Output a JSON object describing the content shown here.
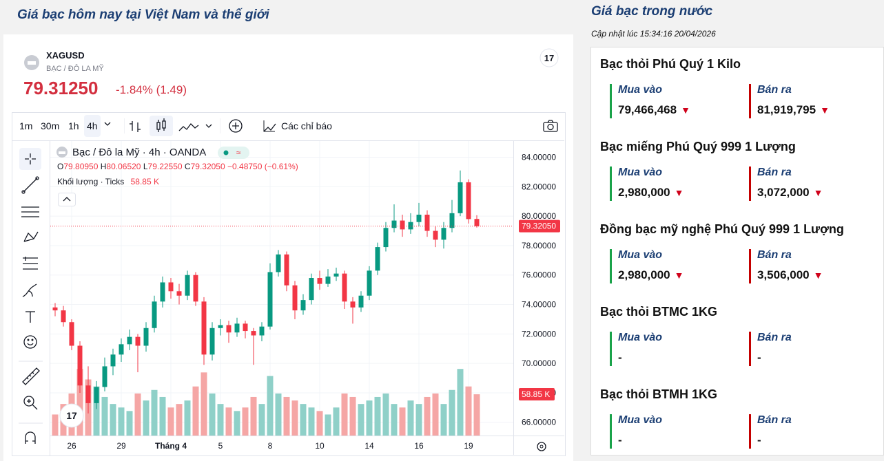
{
  "header": {
    "title": "Giá bạc hôm nay tại Việt Nam và thế giới"
  },
  "widget": {
    "symbol": "XAGUSD",
    "description": "BẠC / ĐÔ LA MỸ",
    "price": "79.31250",
    "change": "-1.84% (1.49)",
    "intervals": [
      "1m",
      "30m",
      "1h",
      "4h"
    ],
    "active_interval": 3,
    "indicators_button": "Các chỉ báo",
    "legend": {
      "title": "Bạc / Đô la Mỹ · 4h · OANDA",
      "o_key": "O",
      "o": "79.80950",
      "h_key": "H",
      "h": "80.06520",
      "l_key": "L",
      "l": "79.22550",
      "c_key": "C",
      "c": "79.32050",
      "change": "−0.48750 (−0.61%)",
      "volume_title": "Khối lượng · Ticks"
    }
  },
  "chart_data": {
    "type": "candlestick",
    "categories": [
      null,
      null,
      "26",
      null,
      null,
      null,
      null,
      null,
      "29",
      null,
      null,
      null,
      null,
      null,
      "Tháng 4",
      null,
      null,
      null,
      null,
      null,
      "5",
      null,
      null,
      null,
      null,
      null,
      "8",
      null,
      null,
      null,
      null,
      null,
      "10",
      null,
      null,
      null,
      null,
      null,
      "14",
      null,
      null,
      null,
      null,
      null,
      "16",
      null,
      null,
      null,
      null,
      null,
      "19",
      null
    ],
    "ohlc": [
      [
        73.8,
        74.1,
        73.2,
        73.6
      ],
      [
        73.6,
        73.9,
        72.5,
        72.8
      ],
      [
        72.8,
        73.0,
        70.9,
        71.2
      ],
      [
        71.2,
        71.5,
        68.0,
        68.5
      ],
      [
        68.5,
        69.8,
        66.6,
        67.3
      ],
      [
        67.3,
        68.8,
        66.9,
        68.4
      ],
      [
        68.4,
        70.4,
        68.1,
        69.8
      ],
      [
        69.8,
        71.0,
        69.2,
        70.6
      ],
      [
        70.6,
        71.7,
        70.1,
        71.3
      ],
      [
        71.3,
        72.3,
        70.9,
        71.8
      ],
      [
        71.8,
        72.0,
        69.4,
        71.2
      ],
      [
        71.2,
        72.8,
        70.8,
        72.4
      ],
      [
        72.4,
        74.6,
        72.1,
        74.2
      ],
      [
        74.2,
        75.9,
        73.8,
        75.5
      ],
      [
        75.5,
        75.8,
        74.4,
        74.9
      ],
      [
        74.9,
        75.4,
        74.0,
        74.6
      ],
      [
        74.6,
        76.3,
        74.3,
        76.0
      ],
      [
        76.0,
        76.2,
        73.9,
        74.2
      ],
      [
        74.2,
        74.5,
        69.9,
        70.6
      ],
      [
        70.6,
        72.8,
        70.2,
        72.4
      ],
      [
        72.4,
        73.0,
        71.9,
        72.6
      ],
      [
        72.6,
        72.9,
        71.4,
        72.1
      ],
      [
        72.1,
        73.1,
        71.8,
        72.7
      ],
      [
        72.7,
        72.9,
        71.7,
        72.2
      ],
      [
        72.2,
        72.4,
        69.9,
        71.9
      ],
      [
        71.9,
        72.8,
        71.5,
        72.5
      ],
      [
        72.5,
        76.8,
        72.3,
        76.2
      ],
      [
        76.2,
        77.7,
        75.9,
        77.4
      ],
      [
        77.4,
        77.6,
        74.9,
        75.3
      ],
      [
        75.3,
        75.6,
        73.0,
        73.6
      ],
      [
        73.6,
        74.7,
        73.3,
        74.3
      ],
      [
        74.3,
        76.1,
        74.0,
        75.8
      ],
      [
        75.8,
        76.3,
        75.0,
        75.4
      ],
      [
        75.4,
        76.4,
        75.2,
        75.9
      ],
      [
        75.9,
        76.5,
        75.6,
        76.1
      ],
      [
        76.1,
        76.3,
        73.7,
        74.2
      ],
      [
        74.2,
        74.5,
        72.7,
        73.8
      ],
      [
        73.8,
        74.9,
        73.5,
        74.6
      ],
      [
        74.6,
        76.6,
        74.3,
        76.3
      ],
      [
        76.3,
        78.2,
        76.0,
        77.9
      ],
      [
        77.9,
        79.6,
        77.6,
        79.2
      ],
      [
        79.2,
        80.8,
        78.9,
        79.7
      ],
      [
        79.7,
        80.1,
        78.6,
        79.1
      ],
      [
        79.1,
        80.2,
        78.8,
        79.6
      ],
      [
        79.6,
        80.9,
        79.3,
        80.1
      ],
      [
        80.1,
        80.4,
        78.6,
        79.0
      ],
      [
        79.0,
        79.3,
        77.9,
        78.4
      ],
      [
        78.4,
        79.6,
        77.8,
        79.2
      ],
      [
        79.2,
        81.1,
        78.9,
        80.2
      ],
      [
        80.2,
        83.1,
        80.0,
        82.3
      ],
      [
        82.3,
        82.5,
        79.5,
        79.8
      ],
      [
        79.8095,
        80.0652,
        79.2255,
        79.3205
      ]
    ],
    "volumes": [
      30,
      45,
      60,
      95,
      80,
      70,
      55,
      45,
      40,
      35,
      60,
      50,
      65,
      55,
      40,
      45,
      50,
      70,
      90,
      60,
      45,
      40,
      35,
      40,
      55,
      45,
      85,
      60,
      55,
      50,
      45,
      40,
      35,
      30,
      40,
      60,
      55,
      45,
      50,
      55,
      60,
      45,
      40,
      50,
      45,
      55,
      60,
      45,
      65,
      95,
      70,
      58.85
    ],
    "volume_label": "58.85 K",
    "volume_lim": [
      0,
      420
    ],
    "last_price_label": "79.32050",
    "ylim": [
      65.1,
      85.1
    ],
    "yticks": [
      {
        "value": 66,
        "label": "66.00000"
      },
      {
        "value": 68,
        "label": "68.00000"
      },
      {
        "value": 70,
        "label": "70.00000"
      },
      {
        "value": 72,
        "label": "72.00000"
      },
      {
        "value": 74,
        "label": "74.00000"
      },
      {
        "value": 76,
        "label": "76.00000"
      },
      {
        "value": 78,
        "label": "78.00000"
      },
      {
        "value": 80,
        "label": "80.00000"
      },
      {
        "value": 82,
        "label": "82.00000"
      },
      {
        "value": 84,
        "label": "84.00000"
      }
    ],
    "grid": true,
    "up_color": "#089981",
    "down_color": "#f23645",
    "up_volume_color": "#8fd0c8",
    "down_volume_color": "#f5a6a5"
  },
  "domestic": {
    "title": "Giá bạc trong nước",
    "updated": "Cập nhật lúc 15:34:16 20/04/2026",
    "buy_label": "Mua vào",
    "sell_label": "Bán ra",
    "products": [
      {
        "name": "Bạc thỏi Phú Quý 1 Kilo",
        "buy": "79,466,468",
        "sell": "81,919,795",
        "direction": "down"
      },
      {
        "name": "Bạc miếng Phú Quý 999 1 Lượng",
        "buy": "2,980,000",
        "sell": "3,072,000",
        "direction": "down"
      },
      {
        "name": "Đồng bạc mỹ nghệ Phú Quý 999 1 Lượng",
        "buy": "2,980,000",
        "sell": "3,506,000",
        "direction": "down"
      },
      {
        "name": "Bạc thỏi BTMC 1KG",
        "buy": "-",
        "sell": "-"
      },
      {
        "name": "Bạc thỏi BTMH 1KG",
        "buy": "-",
        "sell": "-"
      }
    ]
  }
}
